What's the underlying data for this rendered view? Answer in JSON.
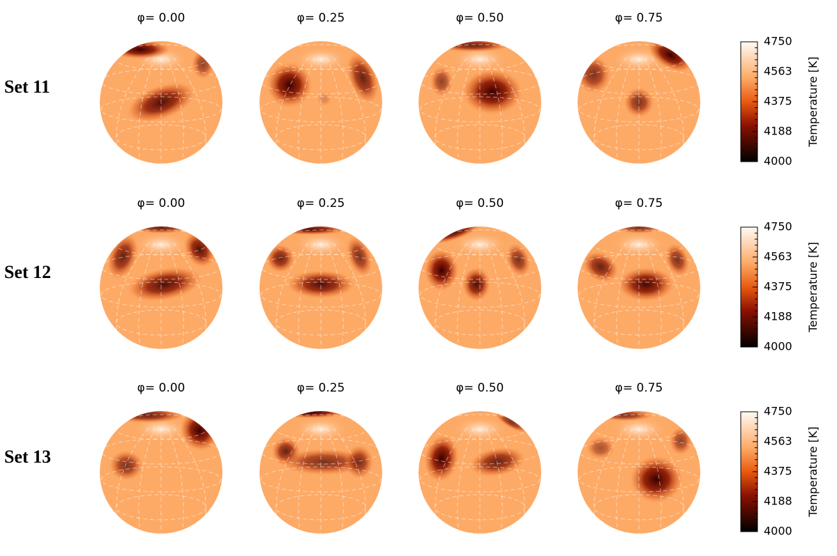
{
  "rows": [
    {
      "label": "Set 11",
      "phases": [
        "φ= 0.00",
        "φ= 0.25",
        "φ= 0.50",
        "φ= 0.75"
      ]
    },
    {
      "label": "Set 12",
      "phases": [
        "φ= 0.00",
        "φ= 0.25",
        "φ= 0.50",
        "φ= 0.75"
      ]
    },
    {
      "label": "Set 13",
      "phases": [
        "φ= 0.00",
        "φ= 0.25",
        "φ= 0.50",
        "φ= 0.75"
      ]
    }
  ],
  "colorbar": {
    "label": "Temperature [K]",
    "ticks": [
      4750,
      4563,
      4375,
      4188,
      4000
    ]
  }
}
